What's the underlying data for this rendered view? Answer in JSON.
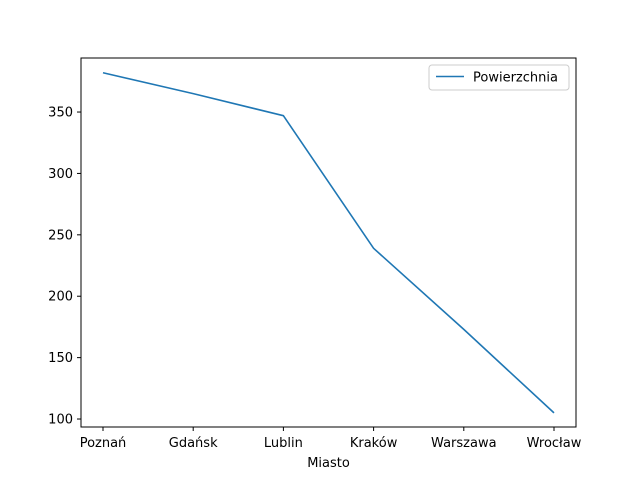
{
  "chart_data": {
    "type": "line",
    "categories": [
      "Poznań",
      "Gdańsk",
      "Lublin",
      "Kraków",
      "Warszawa",
      "Wrocław"
    ],
    "series": [
      {
        "name": "Powierzchnia",
        "values": [
          382,
          365,
          347,
          239,
          173,
          105
        ],
        "color": "#1f77b4"
      }
    ],
    "xlabel": "Miasto",
    "ylabel": "",
    "title": "",
    "ylim": [
      93.5,
      394
    ],
    "yticks": [
      100,
      150,
      200,
      250,
      300,
      350
    ],
    "grid": false,
    "legend_position": "top-right"
  }
}
